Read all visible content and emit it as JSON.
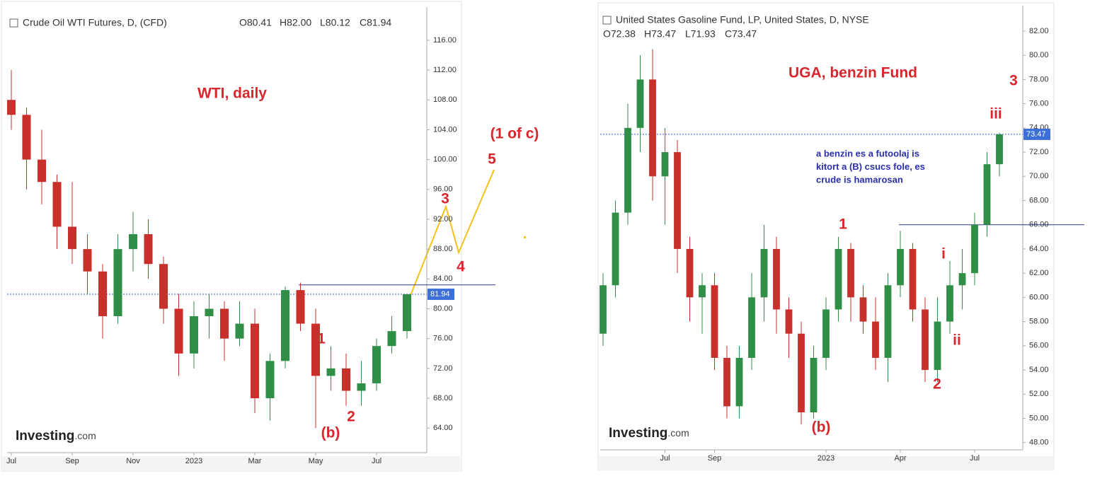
{
  "chart_data": [
    {
      "type": "candlestick",
      "title": "Crude Oil WTI Futures, D, (CFD)",
      "ohlc_header": [
        "O80.41",
        "H82.00",
        "L80.12",
        "C81.94"
      ],
      "categories": [
        "Jul",
        null,
        null,
        null,
        "Sep",
        null,
        null,
        null,
        "Nov",
        null,
        null,
        null,
        "2023",
        null,
        null,
        null,
        "Mar",
        null,
        null,
        null,
        "May",
        null,
        null,
        null,
        "Jul",
        null,
        null
      ],
      "open": [
        108,
        106,
        100,
        97,
        91,
        88,
        85,
        79,
        88,
        90,
        86,
        80,
        74,
        79,
        80,
        76,
        78,
        68,
        73,
        82.5,
        78,
        71,
        72,
        69,
        70,
        75,
        77
      ],
      "high": [
        112,
        107,
        104,
        98,
        97,
        90,
        86,
        90,
        93,
        92,
        87,
        82,
        81,
        82,
        81,
        81,
        80,
        74,
        83,
        83.5,
        80,
        75,
        74,
        73,
        76,
        79,
        82
      ],
      "low": [
        104,
        96,
        94,
        88,
        86,
        82,
        76,
        78,
        85,
        84,
        78,
        71,
        72,
        76,
        73,
        75,
        66,
        65,
        72,
        77,
        64,
        69,
        67,
        67,
        69,
        74,
        76
      ],
      "close": [
        106,
        100,
        97,
        91,
        88,
        85,
        79,
        88,
        90,
        86,
        80,
        74,
        79,
        80,
        76,
        78,
        68,
        73,
        82.5,
        78,
        71,
        72,
        69,
        70,
        75,
        77,
        81.94
      ],
      "up_color": "#2f8f46",
      "down_color": "#c8302c",
      "ylim": [
        60.7,
        120.45
      ],
      "yticks": [
        {
          "value": 64,
          "label": "64.00"
        },
        {
          "value": 68,
          "label": "68.00"
        },
        {
          "value": 72,
          "label": "72.00"
        },
        {
          "value": 76,
          "label": "76.00"
        },
        {
          "value": 80,
          "label": "80.00"
        },
        {
          "value": 84,
          "label": "84.00"
        },
        {
          "value": 88,
          "label": "88.00"
        },
        {
          "value": 92,
          "label": "92.00"
        },
        {
          "value": 96,
          "label": "96.00"
        },
        {
          "value": 100,
          "label": "100.00"
        },
        {
          "value": 104,
          "label": "104.00"
        },
        {
          "value": 108,
          "label": "108.00"
        },
        {
          "value": 112,
          "label": "112.00"
        },
        {
          "value": 116,
          "label": "116.00"
        }
      ],
      "last_price": 81.94,
      "hline": 83.2,
      "annotations": [
        "WTI, daily",
        "(1 of c)",
        "5",
        "3",
        "4",
        "1",
        "2",
        "(b)"
      ],
      "watermark": "Investing",
      "watermark_suffix": ".com"
    },
    {
      "type": "candlestick",
      "title": "United States Gasoline Fund, LP, United States, D, NYSE",
      "ohlc_header": [
        "O72.38",
        "H73.47",
        "L71.93",
        "C73.47"
      ],
      "categories": [
        null,
        null,
        null,
        null,
        null,
        "Jul",
        null,
        null,
        null,
        "Sep",
        null,
        null,
        null,
        null,
        null,
        null,
        null,
        null,
        "2023",
        null,
        null,
        null,
        null,
        null,
        "Apr",
        null,
        null,
        null,
        null,
        null,
        "Jul",
        null,
        null
      ],
      "open": [
        57,
        61,
        67,
        74,
        78,
        70,
        72,
        64,
        60,
        61,
        55,
        51,
        55,
        60,
        64,
        59,
        57,
        50.5,
        55,
        59,
        64,
        60,
        58,
        55,
        61,
        64,
        59,
        54,
        58,
        61,
        62,
        66,
        71
      ],
      "high": [
        62,
        68,
        76,
        80,
        80.5,
        74,
        73,
        65,
        62,
        62,
        56,
        56,
        62,
        66,
        65,
        60,
        58,
        56,
        60,
        65,
        64.5,
        61,
        60,
        62,
        65.5,
        64.5,
        60,
        60,
        63,
        64,
        67,
        72,
        73.6
      ],
      "low": [
        56,
        60,
        66,
        72,
        68,
        66,
        62,
        58,
        57,
        54,
        50,
        50,
        54,
        58,
        57,
        55,
        49.5,
        50,
        54,
        58,
        58,
        57,
        54,
        53,
        60,
        58,
        53,
        53,
        57,
        59,
        61,
        65,
        70
      ],
      "close": [
        61,
        67,
        74,
        78,
        70,
        72,
        64,
        60,
        61,
        55,
        51,
        55,
        60,
        64,
        59,
        57,
        50.5,
        55,
        59,
        64,
        60,
        58,
        55,
        61,
        64,
        59,
        54,
        58,
        61,
        62,
        66,
        71,
        73.47
      ],
      "up_color": "#2f8f46",
      "down_color": "#c8302c",
      "ylim": [
        47.4,
        84.1
      ],
      "yticks": [
        {
          "value": 48,
          "label": "48.00"
        },
        {
          "value": 50,
          "label": "50.00"
        },
        {
          "value": 52,
          "label": "52.00"
        },
        {
          "value": 54,
          "label": "54.00"
        },
        {
          "value": 56,
          "label": "56.00"
        },
        {
          "value": 58,
          "label": "58.00"
        },
        {
          "value": 60,
          "label": "60.00"
        },
        {
          "value": 62,
          "label": "62.00"
        },
        {
          "value": 64,
          "label": "64.00"
        },
        {
          "value": 66,
          "label": "66.00"
        },
        {
          "value": 68,
          "label": "68.00"
        },
        {
          "value": 70,
          "label": "70.00"
        },
        {
          "value": 72,
          "label": "72.00"
        },
        {
          "value": 74,
          "label": "74.00"
        },
        {
          "value": 76,
          "label": "76.00"
        },
        {
          "value": 78,
          "label": "78.00"
        },
        {
          "value": 80,
          "label": "80.00"
        },
        {
          "value": 82,
          "label": "82.00"
        }
      ],
      "last_price": 73.47,
      "hline": 66,
      "annotations": [
        "UGA, benzin Fund",
        "3",
        "iii",
        "1",
        "i",
        "ii",
        "2",
        "(b)"
      ],
      "notes": [
        "a benzin es a futoolaj is",
        "kitort a (B) csucs fole, es",
        "crude is hamarosan"
      ],
      "watermark": "Investing",
      "watermark_suffix": ".com"
    }
  ]
}
